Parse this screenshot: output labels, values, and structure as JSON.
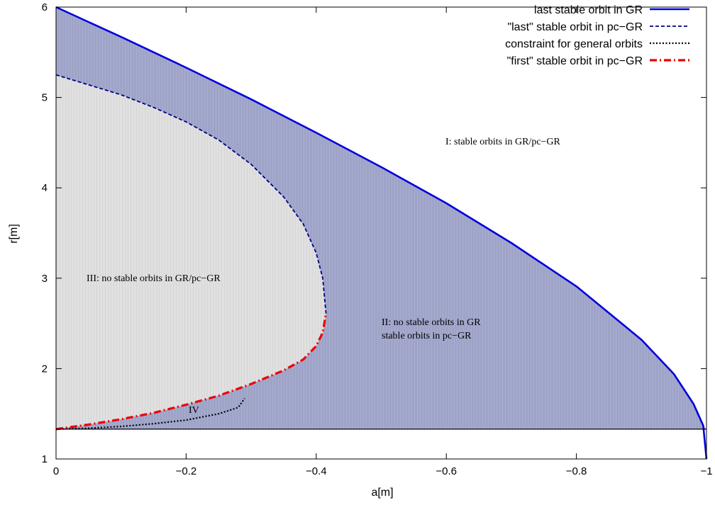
{
  "chart_data": {
    "type": "line",
    "xlabel": "a[m]",
    "ylabel": "r[m]",
    "xlim": [
      0,
      -1
    ],
    "ylim": [
      1,
      6
    ],
    "x_ticks": [
      {
        "value": 0,
        "label": "0"
      },
      {
        "value": -0.2,
        "label": "−0.2"
      },
      {
        "value": -0.4,
        "label": "−0.4"
      },
      {
        "value": -0.6,
        "label": "−0.6"
      },
      {
        "value": -0.8,
        "label": "−0.8"
      },
      {
        "value": -1,
        "label": "−1"
      }
    ],
    "y_ticks": [
      {
        "value": 1,
        "label": "1"
      },
      {
        "value": 2,
        "label": "2"
      },
      {
        "value": 3,
        "label": "3"
      },
      {
        "value": 4,
        "label": "4"
      },
      {
        "value": 5,
        "label": "5"
      },
      {
        "value": 6,
        "label": "6"
      }
    ],
    "grid": false,
    "legend_position": "top-right",
    "series": [
      {
        "name": "last stable orbit in GR",
        "color": "#0000dd",
        "style": "solid",
        "x": [
          0,
          -0.1,
          -0.2,
          -0.3,
          -0.4,
          -0.5,
          -0.6,
          -0.7,
          -0.8,
          -0.9,
          -0.95,
          -0.98,
          -0.995,
          -1.0
        ],
        "y": [
          6.0,
          5.67,
          5.33,
          4.98,
          4.61,
          4.23,
          3.83,
          3.39,
          2.91,
          2.32,
          1.94,
          1.61,
          1.37,
          1.0
        ]
      },
      {
        "name": "\"last\" stable orbit in pc−GR",
        "color": "#000080",
        "style": "dashed",
        "x": [
          0,
          -0.05,
          -0.1,
          -0.15,
          -0.2,
          -0.25,
          -0.3,
          -0.35,
          -0.38,
          -0.4,
          -0.41,
          -0.415
        ],
        "y": [
          5.25,
          5.14,
          5.03,
          4.89,
          4.73,
          4.53,
          4.26,
          3.9,
          3.6,
          3.28,
          3.0,
          2.61
        ]
      },
      {
        "name": "constraint for general orbits",
        "color": "#000000",
        "style": "dotted",
        "x": [
          0,
          -0.05,
          -0.1,
          -0.15,
          -0.2,
          -0.25,
          -0.28,
          -0.29
        ],
        "y": [
          1.33,
          1.34,
          1.36,
          1.39,
          1.43,
          1.5,
          1.57,
          1.67
        ]
      },
      {
        "name": "\"first\" stable orbit in pc−GR",
        "color": "#ee0000",
        "style": "dashdot",
        "x": [
          0,
          -0.05,
          -0.1,
          -0.15,
          -0.2,
          -0.25,
          -0.3,
          -0.35,
          -0.38,
          -0.4,
          -0.41,
          -0.415
        ],
        "y": [
          1.33,
          1.38,
          1.44,
          1.51,
          1.6,
          1.7,
          1.83,
          1.98,
          2.1,
          2.25,
          2.4,
          2.61
        ]
      }
    ],
    "reference_line": {
      "y": 1.33,
      "color": "#000000"
    },
    "regions": [
      {
        "label": "I: stable orbits in GR/pc−GR",
        "fill": "#9ea3c8"
      },
      {
        "label": "II: no stable orbits in GR",
        "label2": "stable orbits in pc−GR",
        "fill": "#9ea3c8"
      },
      {
        "label": "III: no stable orbits in GR/pc−GR",
        "fill": "#e0e0e0"
      },
      {
        "label": "IV",
        "fill": "#e0e0e0"
      }
    ]
  }
}
